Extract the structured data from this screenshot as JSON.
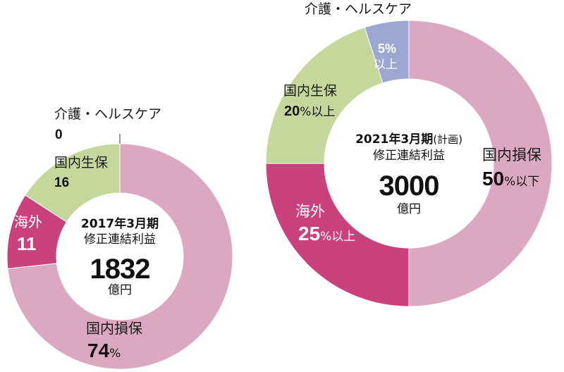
{
  "chart_data": [
    {
      "type": "pie",
      "variant": "donut",
      "title": "2017年3月期 修正連結利益",
      "total": "1832",
      "total_unit": "億円",
      "segments": [
        {
          "label": "国内損保",
          "value": 74,
          "display": "74",
          "unit": "%",
          "color": "#dba7c1"
        },
        {
          "label": "海外",
          "value": 11,
          "display": "11",
          "unit": "",
          "color": "#c9417d"
        },
        {
          "label": "国内生保",
          "value": 16,
          "display": "16",
          "unit": "",
          "color": "#c3d89a"
        },
        {
          "label": "介護・ヘルスケア",
          "value": 0,
          "display": "0",
          "unit": "",
          "color": "#9ca7d2"
        }
      ]
    },
    {
      "type": "pie",
      "variant": "donut",
      "title": "2021年3月期 (計画) 修正連結利益",
      "title_year": "2021年3月期",
      "title_note": "(計画)",
      "title_line2": "修正連結利益",
      "total": "3000",
      "total_unit": "億円",
      "segments": [
        {
          "label": "国内損保",
          "value": 50,
          "display": "50",
          "unit": "%以下",
          "color": "#dba7c1"
        },
        {
          "label": "海外",
          "value": 25,
          "display": "25",
          "unit": "%以上",
          "color": "#c9417d"
        },
        {
          "label": "国内生保",
          "value": 20,
          "display": "20",
          "unit": "%以上",
          "color": "#c3d89a"
        },
        {
          "label": "介護・ヘルスケア",
          "value": 5,
          "display": "5%",
          "unit": "以上",
          "color": "#9ca7d2"
        }
      ]
    }
  ],
  "left": {
    "title_line1": "2017年3月期",
    "title_line2": "修正連結利益",
    "total": "1832",
    "unit": "億円"
  },
  "right": {
    "title_line1": "2021年3月期",
    "title_note": "(計画)",
    "title_line2": "修正連結利益",
    "total": "3000",
    "unit": "億円"
  }
}
